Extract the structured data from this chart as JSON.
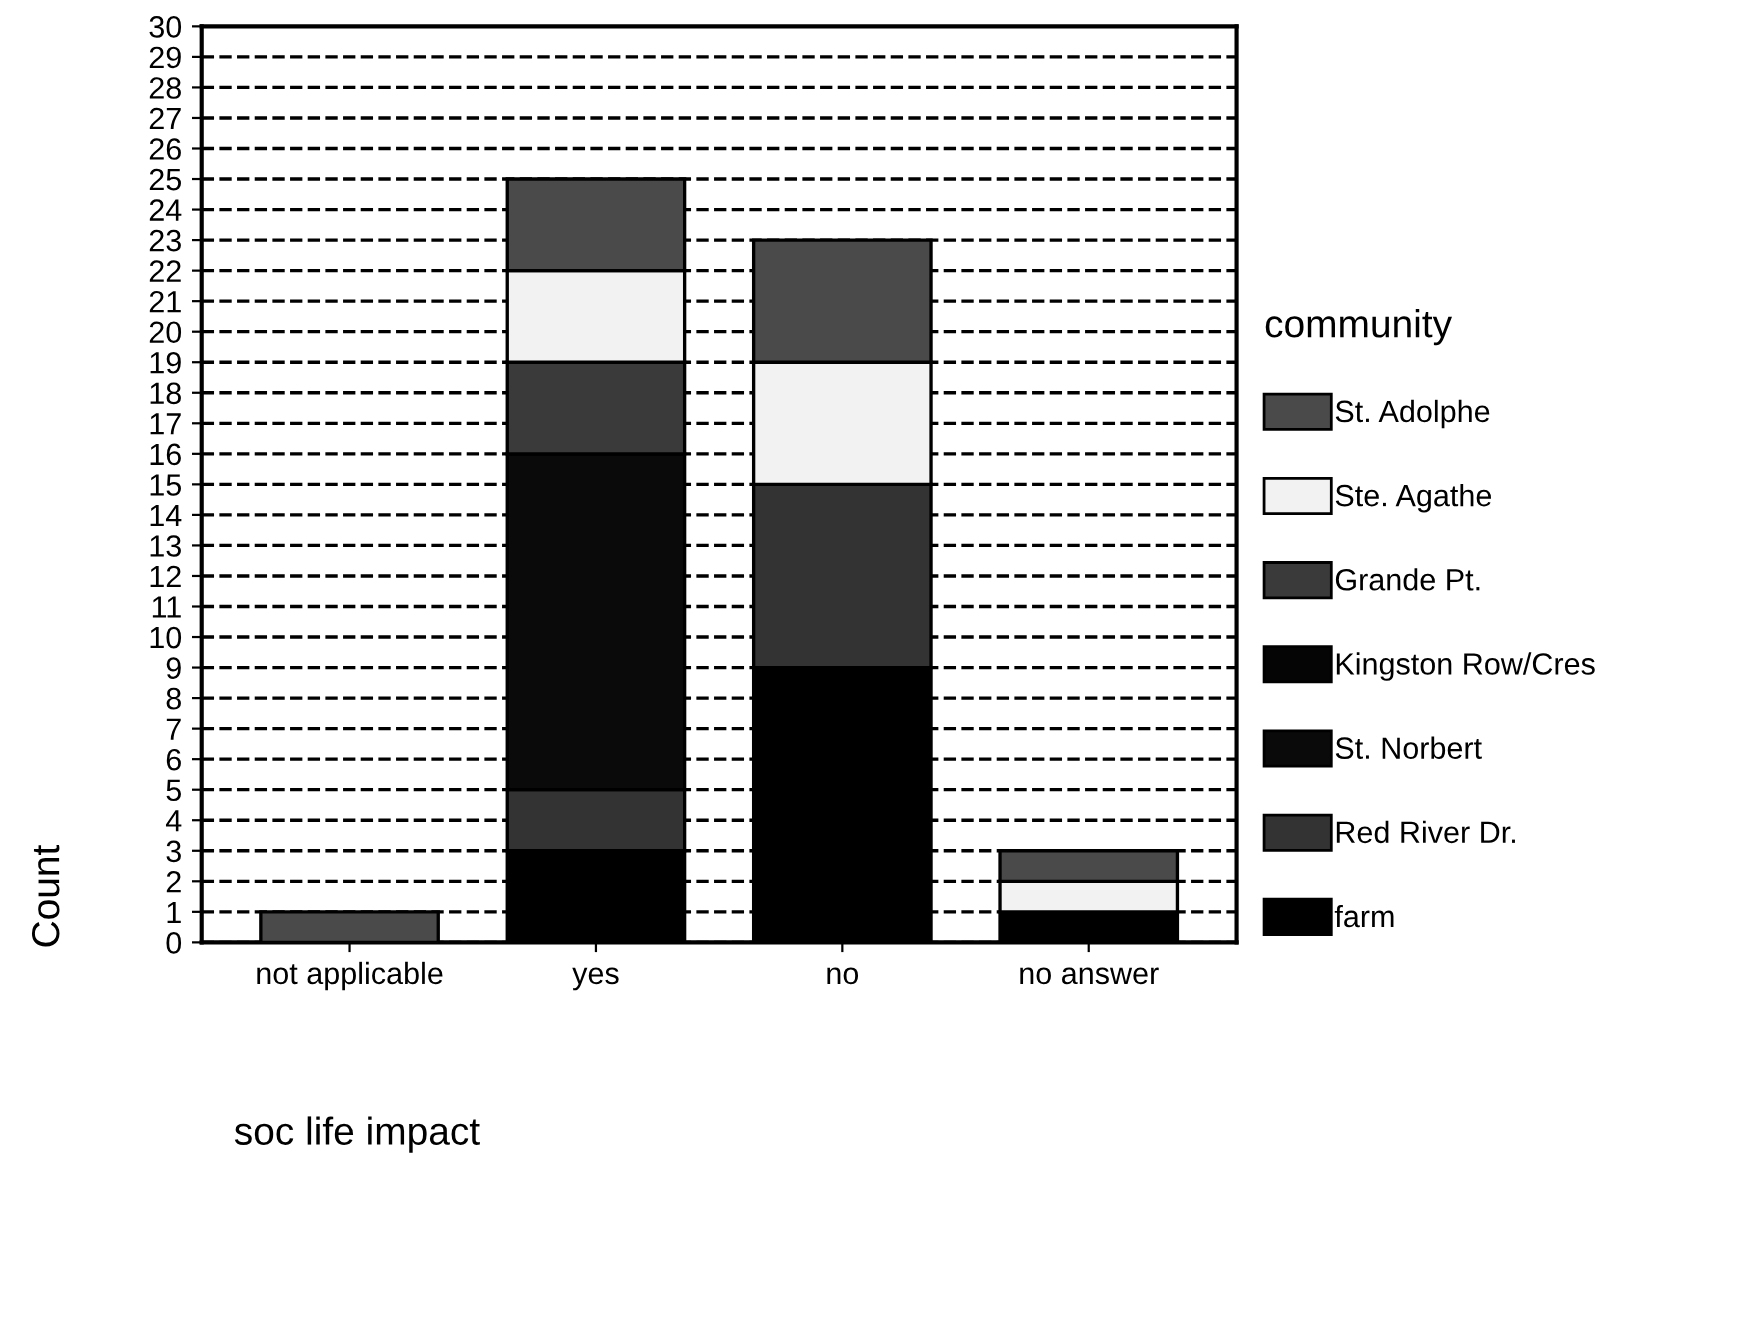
{
  "chart_data": {
    "type": "bar",
    "stacked": true,
    "xlabel": "soc life impact",
    "ylabel": "Count",
    "legend_title": "community",
    "categories": [
      "not applicable",
      "yes",
      "no",
      "no answer"
    ],
    "series": [
      {
        "name": "farm",
        "color": "#000000",
        "values": [
          0,
          3,
          9,
          1
        ]
      },
      {
        "name": "Red River Dr.",
        "color": "#333333",
        "values": [
          0,
          2,
          6,
          0
        ]
      },
      {
        "name": "St. Norbert",
        "color": "#0a0a0a",
        "values": [
          0,
          11,
          0,
          0
        ]
      },
      {
        "name": "Kingston Row/Cres",
        "color": "#050505",
        "values": [
          0,
          0,
          0,
          0
        ]
      },
      {
        "name": "Grande Pt.",
        "color": "#3a3a3a",
        "values": [
          0,
          3,
          0,
          0
        ]
      },
      {
        "name": "Ste. Agathe",
        "color": "#f2f2f2",
        "values": [
          0,
          3,
          4,
          1
        ]
      },
      {
        "name": "St. Adolphe",
        "color": "#4a4a4a",
        "values": [
          1,
          3,
          4,
          1
        ]
      }
    ],
    "ylim": [
      0,
      30
    ],
    "yticks": [
      0,
      1,
      2,
      3,
      4,
      5,
      6,
      7,
      8,
      9,
      10,
      11,
      12,
      13,
      14,
      15,
      16,
      17,
      18,
      19,
      20,
      21,
      22,
      23,
      24,
      25,
      26,
      27,
      28,
      29,
      30
    ],
    "grid": "y",
    "line_style": "dashed",
    "legend": "right"
  }
}
